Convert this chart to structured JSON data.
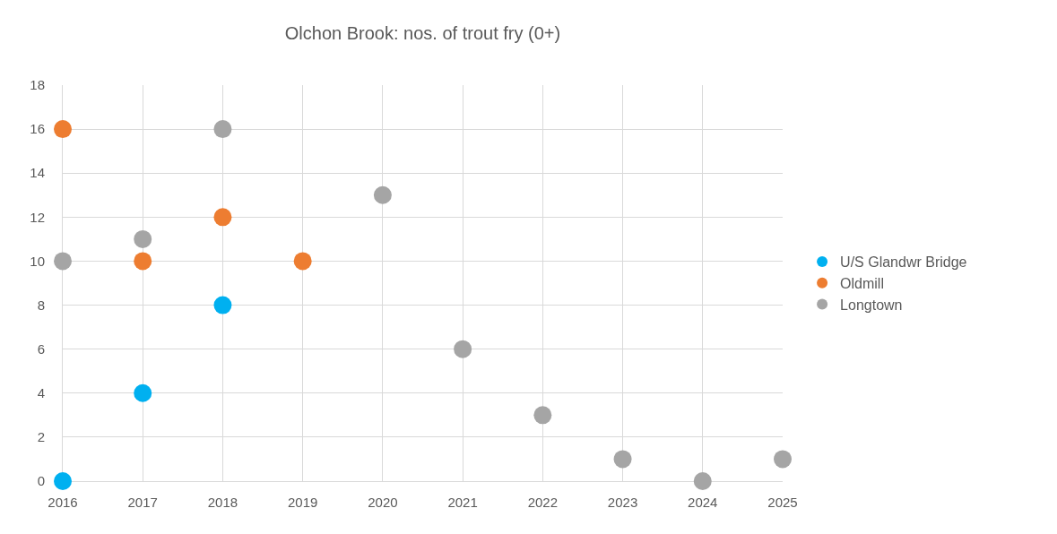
{
  "chart_data": {
    "type": "scatter",
    "title": "Olchon Brook: nos. of trout fry (0+)",
    "series": [
      {
        "name": "U/S Glandwr Bridge",
        "color": "#00b0f0",
        "x": [
          2016,
          2017,
          2018
        ],
        "values": [
          0,
          4,
          8
        ]
      },
      {
        "name": "Oldmill",
        "color": "#ed7d31",
        "x": [
          2016,
          2017,
          2018,
          2019
        ],
        "values": [
          16,
          10,
          12,
          10
        ]
      },
      {
        "name": "Longtown",
        "color": "#a5a5a5",
        "x": [
          2016,
          2017,
          2018,
          2020,
          2021,
          2022,
          2023,
          2024,
          2025
        ],
        "values": [
          10,
          11,
          16,
          13,
          6,
          3,
          1,
          0,
          1
        ]
      }
    ],
    "xlim": [
      2016,
      2025
    ],
    "xticks": [
      2016,
      2017,
      2018,
      2019,
      2020,
      2021,
      2022,
      2023,
      2024,
      2025
    ],
    "ylim": [
      0,
      18
    ],
    "yticks": [
      0,
      2,
      4,
      6,
      8,
      10,
      12,
      14,
      16,
      18
    ],
    "grid": true,
    "legend": "right",
    "marker": "circle"
  }
}
